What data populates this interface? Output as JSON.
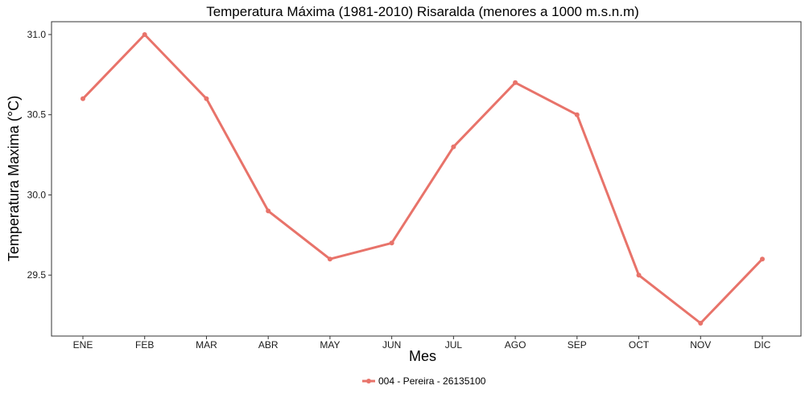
{
  "chart_data": {
    "type": "line",
    "title": "Temperatura Máxima (1981-2010) Risaralda (menores a 1000 m.s.n.m)",
    "xlabel": "Mes",
    "ylabel": "Temperatura Maxima (°C)",
    "categories": [
      "ENE",
      "FEB",
      "MAR",
      "ABR",
      "MAY",
      "JUN",
      "JUL",
      "AGO",
      "SEP",
      "OCT",
      "NOV",
      "DIC"
    ],
    "series": [
      {
        "name": "004 - Pereira - 26135100",
        "values": [
          30.6,
          31.0,
          30.6,
          29.9,
          29.6,
          29.7,
          30.3,
          30.7,
          30.5,
          29.5,
          29.2,
          29.6
        ],
        "color": "#e8736a"
      }
    ],
    "yticks": [
      "29.5",
      "30.0",
      "30.5",
      "31.0"
    ],
    "ylim": [
      29.12,
      31.08
    ],
    "grid": false,
    "legend_position": "bottom"
  }
}
